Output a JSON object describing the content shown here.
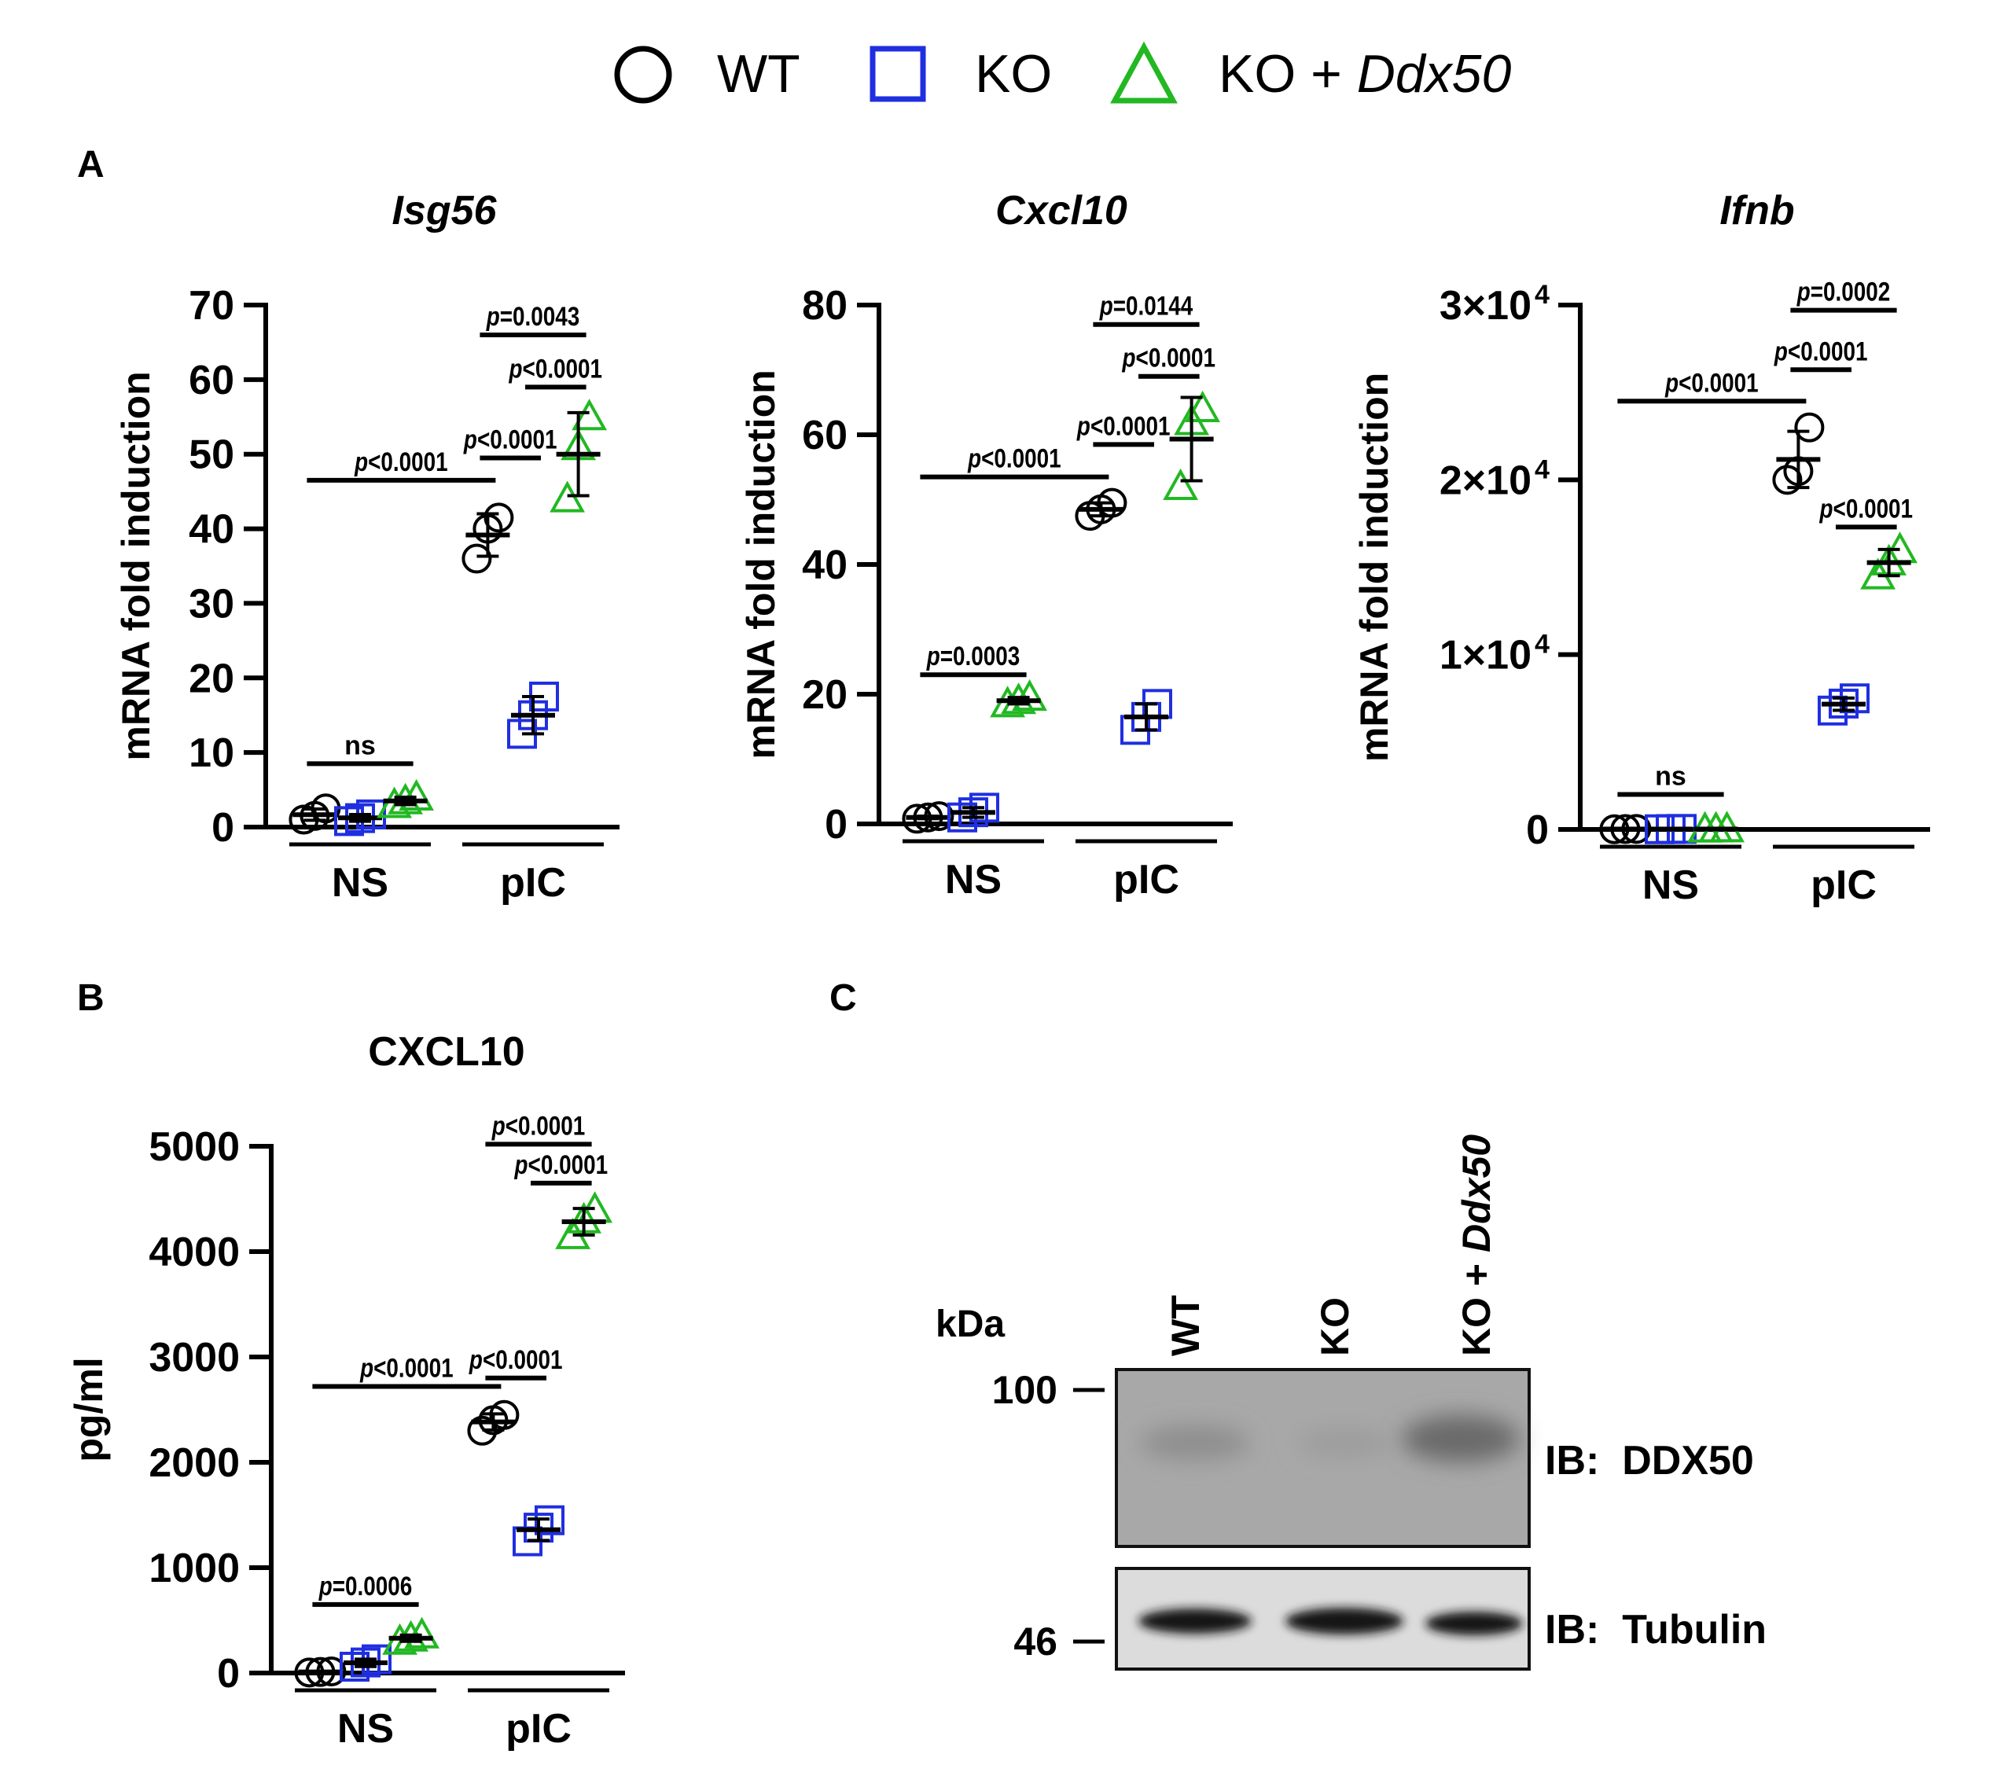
{
  "legend": {
    "items": [
      {
        "label": "WT",
        "marker": "circle",
        "color": "#000000"
      },
      {
        "label": "KO",
        "marker": "square",
        "color": "#1f2fe0"
      },
      {
        "label_prefix": "KO + ",
        "label_italic": "Ddx50",
        "marker": "triangle",
        "color": "#22b822"
      }
    ]
  },
  "groups": [
    "NS",
    "pIC"
  ],
  "colors": {
    "WT": "#000000",
    "KO": "#1f2fe0",
    "KO_Ddx50": "#22b822"
  },
  "chart_data": [
    {
      "id": "A1",
      "panel_letter": "A",
      "type": "scatter",
      "title": "Isg56",
      "title_italic": true,
      "ylabel": "mRNA fold induction",
      "ylim": [
        0,
        70
      ],
      "ticks": [
        0,
        10,
        20,
        30,
        40,
        50,
        60,
        70
      ],
      "tick_labels": [
        "0",
        "10",
        "20",
        "30",
        "40",
        "50",
        "60",
        "70"
      ],
      "categories": [
        "NS",
        "pIC"
      ],
      "series": [
        {
          "name": "WT",
          "values": {
            "NS": [
              1,
              1.5,
              2.5
            ],
            "pIC": [
              36,
              40,
              41.5
            ]
          }
        },
        {
          "name": "KO",
          "values": {
            "NS": [
              0.8,
              1.2,
              1.7
            ],
            "pIC": [
              12.5,
              15,
              17.5
            ]
          }
        },
        {
          "name": "KO + Ddx50",
          "values": {
            "NS": [
              3,
              3.5,
              4
            ],
            "pIC": [
              44,
              51,
              55
            ]
          }
        }
      ],
      "annotations": [
        {
          "text": "ns",
          "from": "NS:WT",
          "to": "NS:KO + Ddx50",
          "y": 8.5,
          "style": "plain"
        },
        {
          "text": "p<0.0001",
          "from": "NS:WT",
          "to": "pIC:WT",
          "y": 46.5
        },
        {
          "text": "p<0.0001",
          "from": "pIC:WT",
          "to": "pIC:KO",
          "y": 49.5
        },
        {
          "text": "p<0.0001",
          "from": "pIC:KO",
          "to": "pIC:KO + Ddx50",
          "y": 59
        },
        {
          "text": "p=0.0043",
          "from": "pIC:WT",
          "to": "pIC:KO + Ddx50",
          "y": 66
        }
      ]
    },
    {
      "id": "A2",
      "type": "scatter",
      "title": "Cxcl10",
      "title_italic": true,
      "ylabel": "mRNA fold induction",
      "ylim": [
        0,
        80
      ],
      "ticks": [
        0,
        20,
        40,
        60,
        80
      ],
      "tick_labels": [
        "0",
        "20",
        "40",
        "60",
        "80"
      ],
      "categories": [
        "NS",
        "pIC"
      ],
      "series": [
        {
          "name": "WT",
          "values": {
            "NS": [
              0.8,
              1,
              1.2
            ],
            "pIC": [
              47.5,
              48.5,
              49.5
            ]
          }
        },
        {
          "name": "KO",
          "values": {
            "NS": [
              1,
              1.8,
              2.5
            ],
            "pIC": [
              14.5,
              16.5,
              18.5
            ]
          }
        },
        {
          "name": "KO + Ddx50",
          "values": {
            "NS": [
              18.5,
              19,
              19.5
            ],
            "pIC": [
              52,
              62,
              64
            ]
          }
        }
      ],
      "annotations": [
        {
          "text": "p=0.0003",
          "from": "NS:WT",
          "to": "NS:KO + Ddx50",
          "y": 23
        },
        {
          "text": "p<0.0001",
          "from": "NS:WT",
          "to": "pIC:WT",
          "y": 53.5
        },
        {
          "text": "p<0.0001",
          "from": "pIC:WT",
          "to": "pIC:KO",
          "y": 58.5
        },
        {
          "text": "p<0.0001",
          "from": "pIC:KO",
          "to": "pIC:KO + Ddx50",
          "y": 69
        },
        {
          "text": "p=0.0144",
          "from": "pIC:WT",
          "to": "pIC:KO + Ddx50",
          "y": 77
        }
      ]
    },
    {
      "id": "A3",
      "type": "scatter",
      "title": "Ifnb",
      "title_italic": true,
      "ylabel": "mRNA fold induction",
      "ylim": [
        0,
        30000
      ],
      "ticks": [
        0,
        10000,
        20000,
        30000
      ],
      "tick_labels": [
        "0",
        "1×10",
        "2×10",
        "3×10"
      ],
      "tick_sup": [
        "",
        "4",
        "4",
        "4"
      ],
      "categories": [
        "NS",
        "pIC"
      ],
      "series": [
        {
          "name": "WT",
          "values": {
            "NS": [
              10,
              20,
              30
            ],
            "pIC": [
              20000,
              20500,
              23000
            ]
          }
        },
        {
          "name": "KO",
          "values": {
            "NS": [
              10,
              20,
              30
            ],
            "pIC": [
              6800,
              7200,
              7500
            ]
          }
        },
        {
          "name": "KO + Ddx50",
          "values": {
            "NS": [
              10,
              20,
              30
            ],
            "pIC": [
              14500,
              15300,
              16000
            ]
          }
        }
      ],
      "annotations": [
        {
          "text": "ns",
          "from": "NS:WT",
          "to": "NS:KO + Ddx50",
          "y": 2000,
          "style": "plain"
        },
        {
          "text": "p<0.0001",
          "from": "NS:WT",
          "to": "pIC:WT",
          "y": 24500
        },
        {
          "text": "p<0.0001",
          "from": "pIC:WT",
          "to": "pIC:KO",
          "y": 26300
        },
        {
          "text": "p=0.0002",
          "from": "pIC:WT",
          "to": "pIC:KO + Ddx50",
          "y": 29700
        },
        {
          "text": "p<0.0001",
          "from": "pIC:KO",
          "to": "pIC:KO + Ddx50",
          "y": 17300
        }
      ]
    },
    {
      "id": "B",
      "panel_letter": "B",
      "type": "scatter",
      "title": "CXCL10",
      "title_italic": false,
      "ylabel": "pg/ml",
      "ylim": [
        0,
        5000
      ],
      "ticks": [
        0,
        1000,
        2000,
        3000,
        4000,
        5000
      ],
      "tick_labels": [
        "0",
        "1000",
        "2000",
        "3000",
        "4000",
        "5000"
      ],
      "categories": [
        "NS",
        "pIC"
      ],
      "series": [
        {
          "name": "WT",
          "values": {
            "NS": [
              5,
              10,
              15
            ],
            "pIC": [
              2300,
              2400,
              2450
            ]
          }
        },
        {
          "name": "KO",
          "values": {
            "NS": [
              60,
              100,
              130
            ],
            "pIC": [
              1250,
              1380,
              1450
            ]
          }
        },
        {
          "name": "KO + Ddx50",
          "values": {
            "NS": [
              300,
              330,
              360
            ],
            "pIC": [
              4150,
              4300,
              4400
            ]
          }
        }
      ],
      "annotations": [
        {
          "text": "p=0.0006",
          "from": "NS:WT",
          "to": "NS:KO + Ddx50",
          "y": 650
        },
        {
          "text": "p<0.0001",
          "from": "NS:WT",
          "to": "pIC:WT",
          "y": 2720
        },
        {
          "text": "p<0.0001",
          "from": "pIC:WT",
          "to": "pIC:KO",
          "y": 2800
        },
        {
          "text": "p<0.0001",
          "from": "pIC:WT",
          "to": "pIC:KO + Ddx50",
          "y": 5020
        },
        {
          "text": "p<0.0001",
          "from": "pIC:KO",
          "to": "pIC:KO + Ddx50",
          "y": 4650
        }
      ]
    }
  ],
  "blot": {
    "panel_letter": "C",
    "kda_label": "kDa",
    "lanes": [
      {
        "label": "WT",
        "label_prefix": "",
        "label_italic": ""
      },
      {
        "label": "KO",
        "label_prefix": "",
        "label_italic": ""
      },
      {
        "label": "",
        "label_prefix": "KO + ",
        "label_italic": "Ddx50"
      }
    ],
    "markers": [
      {
        "label": "100",
        "target": "upper"
      },
      {
        "label": "46",
        "target": "lower"
      }
    ],
    "strips": [
      {
        "label": "IB:  DDX50",
        "band_intensity": [
          0.1,
          0.05,
          0.6
        ]
      },
      {
        "label": "IB:  Tubulin",
        "band_intensity": [
          1.0,
          1.0,
          1.0
        ]
      }
    ]
  }
}
